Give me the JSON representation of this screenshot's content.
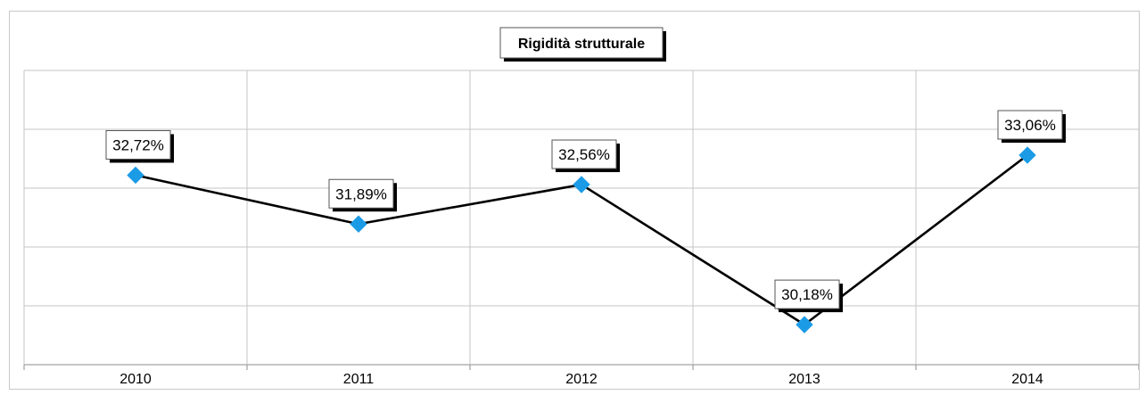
{
  "chart_data": {
    "type": "line",
    "title": "Rigidità strutturale",
    "categories": [
      "2010",
      "2011",
      "2012",
      "2013",
      "2014"
    ],
    "series": [
      {
        "values": [
          32.72,
          31.89,
          32.56,
          30.18,
          33.06
        ],
        "labels": [
          "32,72%",
          "31,89%",
          "32,56%",
          "30,18%",
          "33,06%"
        ]
      }
    ],
    "ylim": [
      29.5,
      34.5
    ],
    "xlabel": "",
    "ylabel": "",
    "grid": true,
    "colors": {
      "line": "#000000",
      "marker": "#1b9be5"
    }
  }
}
